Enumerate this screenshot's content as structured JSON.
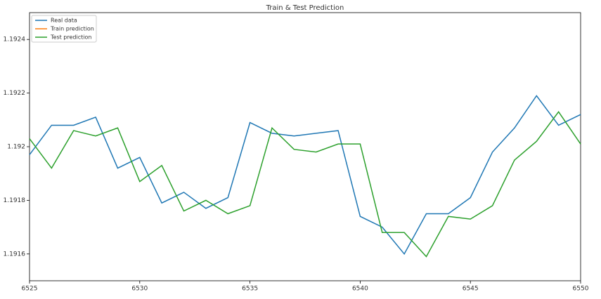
{
  "chart_data": {
    "type": "line",
    "title": "Train & Test Prediction",
    "x": [
      6525,
      6526,
      6527,
      6528,
      6529,
      6530,
      6531,
      6532,
      6533,
      6534,
      6535,
      6536,
      6537,
      6538,
      6539,
      6540,
      6541,
      6542,
      6543,
      6544,
      6545,
      6546,
      6547,
      6548,
      6549,
      6550
    ],
    "series": [
      {
        "name": "Real data",
        "color": "#1f77b4",
        "values": [
          1.19197,
          1.19208,
          1.19208,
          1.19211,
          1.19192,
          1.19196,
          1.19179,
          1.19183,
          1.19177,
          1.19181,
          1.19209,
          1.19205,
          1.19204,
          1.19205,
          1.19206,
          1.19174,
          1.1917,
          1.1916,
          1.19175,
          1.19175,
          1.19181,
          1.19198,
          1.19207,
          1.19219,
          1.19208,
          1.19212
        ]
      },
      {
        "name": "Train prediction",
        "color": "#ff7f0e",
        "values": [
          null,
          null,
          null,
          null,
          null,
          null,
          null,
          null,
          null,
          null,
          null,
          null,
          null,
          null,
          null,
          null,
          null,
          null,
          null,
          null,
          null,
          null,
          null,
          null,
          null,
          null
        ]
      },
      {
        "name": "Test prediction",
        "color": "#2ca02c",
        "values": [
          1.19203,
          1.19192,
          1.19206,
          1.19204,
          1.19207,
          1.19187,
          1.19193,
          1.19176,
          1.1918,
          1.19175,
          1.19178,
          1.19207,
          1.19199,
          1.19198,
          1.19201,
          1.19201,
          1.19168,
          1.19168,
          1.19159,
          1.19174,
          1.19173,
          1.19178,
          1.19195,
          1.19202,
          1.19213,
          1.19201
        ]
      }
    ],
    "xlim": [
      6525,
      6550
    ],
    "xticks": [
      6525,
      6530,
      6535,
      6540,
      6545,
      6550
    ],
    "ylim": [
      1.1915,
      1.1925
    ],
    "yticks": [
      1.1916,
      1.1918,
      1.192,
      1.1922,
      1.1924
    ],
    "legend": "upper left"
  }
}
